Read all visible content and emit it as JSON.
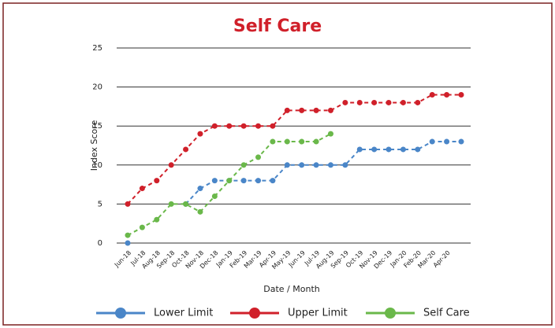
{
  "chart_data": {
    "type": "line",
    "title": "Self Care",
    "x_label": "Date / Month",
    "y_label": "Index Score",
    "categories": [
      "Jun-18",
      "Jul-18",
      "Aug-18",
      "Sep-18",
      "Oct-18",
      "Nov-18",
      "Dec-18",
      "Jan-19",
      "Feb-19",
      "Mar-19",
      "Apr-19",
      "May-19",
      "Jun-19",
      "Jul-19",
      "Aug-19",
      "Sep-19",
      "Oct-19",
      "Nov-19",
      "Dec-19",
      "Jan-20",
      "Feb-20",
      "Mar-20",
      "Apr-20",
      null
    ],
    "series": [
      {
        "name": "Lower Limit",
        "color": "#4a86c8",
        "values": [
          0,
          null,
          null,
          null,
          5,
          7,
          8,
          8,
          8,
          8,
          8,
          10,
          10,
          10,
          10,
          10,
          12,
          12,
          12,
          12,
          12,
          13,
          13,
          13
        ]
      },
      {
        "name": "Upper Limit",
        "color": "#d0202a",
        "values": [
          5,
          7,
          8,
          10,
          12,
          14,
          15,
          15,
          15,
          15,
          15,
          17,
          17,
          17,
          17,
          18,
          18,
          18,
          18,
          18,
          18,
          19,
          19,
          19
        ]
      },
      {
        "name": "Self Care",
        "color": "#6ab84a",
        "values": [
          1,
          2,
          3,
          5,
          5,
          4,
          6,
          8,
          10,
          11,
          13,
          13,
          13,
          13,
          14,
          null,
          null,
          null,
          null,
          null,
          null,
          null,
          null,
          null
        ]
      }
    ],
    "ylim": [
      0,
      25
    ],
    "yticks": [
      0,
      5,
      10,
      15,
      20,
      25
    ],
    "grid": true,
    "legend": "bottom"
  }
}
